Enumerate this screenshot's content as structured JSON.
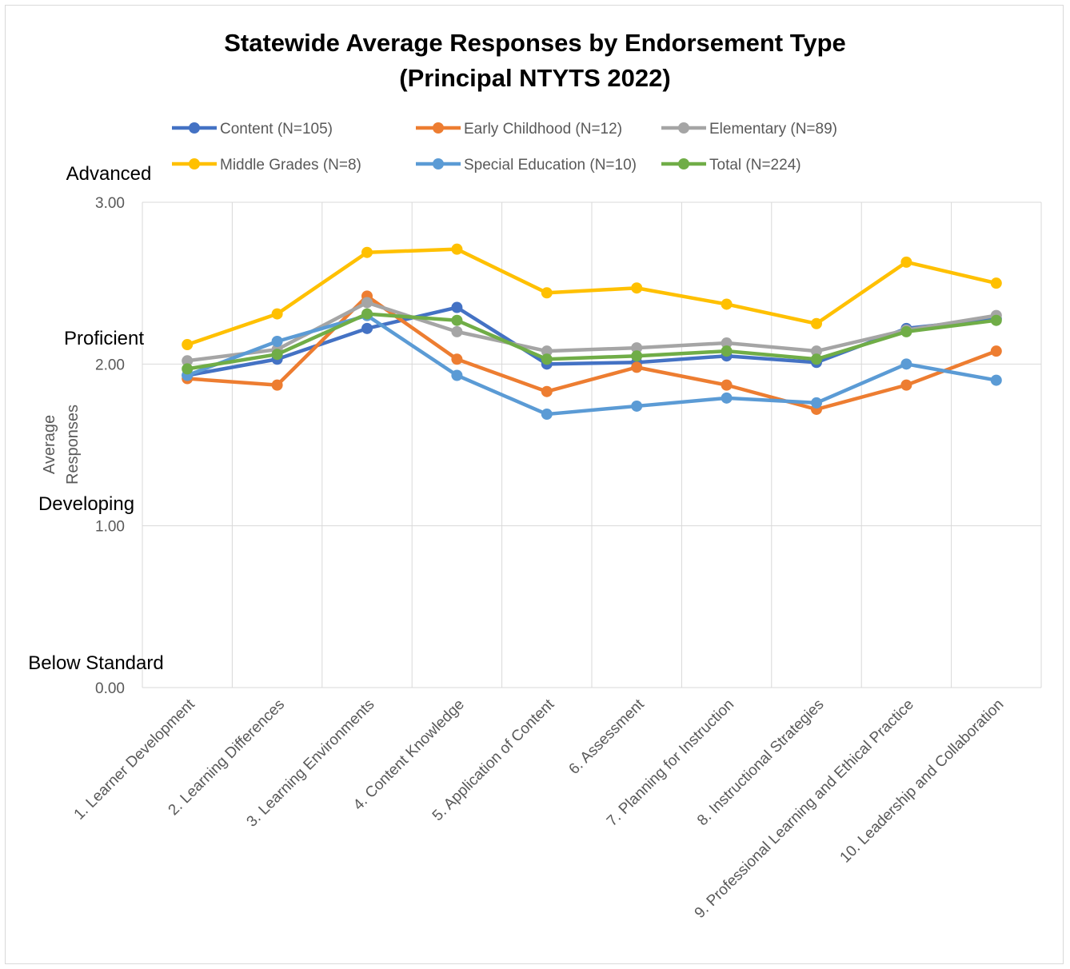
{
  "chart_data": {
    "type": "line",
    "title": "Statewide Average Responses by Endorsement Type",
    "subtitle": "(Principal NTYTS 2022)",
    "ylabel_line1": "Average",
    "ylabel_line2": "Responses",
    "xlabel": "",
    "ylim": [
      0,
      3
    ],
    "y_ticks": [
      "0.00",
      "1.00",
      "2.00",
      "3.00"
    ],
    "y_tick_values": [
      0,
      1,
      2,
      3
    ],
    "level_labels": [
      {
        "label": "Advanced",
        "value": 3
      },
      {
        "label": "Proficient",
        "value": 2
      },
      {
        "label": "Developing",
        "value": 1
      },
      {
        "label": "Below Standard",
        "value": 0
      }
    ],
    "grid": true,
    "legend_position": "top",
    "categories": [
      "1. Learner Development",
      "2. Learning Differences",
      "3. Learning Environments",
      "4. Content Knowledge",
      "5. Application of Content",
      "6. Assessment",
      "7. Planning for Instruction",
      "8. Instructional Strategies",
      "9. Professional Learning and Ethical Practice",
      "10. Leadership and Collaboration"
    ],
    "series": [
      {
        "name": "Content (N=105)",
        "color": "#4472C4",
        "values": [
          1.93,
          2.03,
          2.22,
          2.35,
          2.0,
          2.01,
          2.05,
          2.01,
          2.22,
          2.28
        ]
      },
      {
        "name": "Early Childhood (N=12)",
        "color": "#ED7D31",
        "values": [
          1.91,
          1.87,
          2.42,
          2.03,
          1.83,
          1.98,
          1.87,
          1.72,
          1.87,
          2.08
        ]
      },
      {
        "name": "Elementary (N=89)",
        "color": "#A5A5A5",
        "values": [
          2.02,
          2.09,
          2.38,
          2.2,
          2.08,
          2.1,
          2.13,
          2.08,
          2.21,
          2.3
        ]
      },
      {
        "name": "Middle Grades (N=8)",
        "color": "#FFC000",
        "values": [
          2.12,
          2.31,
          2.69,
          2.71,
          2.44,
          2.47,
          2.37,
          2.25,
          2.63,
          2.5
        ]
      },
      {
        "name": "Special Education (N=10)",
        "color": "#5B9BD5",
        "values": [
          1.93,
          2.14,
          2.3,
          1.93,
          1.69,
          1.74,
          1.79,
          1.76,
          2.0,
          1.9
        ]
      },
      {
        "name": "Total (N=224)",
        "color": "#70AD47",
        "values": [
          1.97,
          2.06,
          2.31,
          2.27,
          2.03,
          2.05,
          2.08,
          2.03,
          2.2,
          2.27
        ]
      }
    ]
  }
}
